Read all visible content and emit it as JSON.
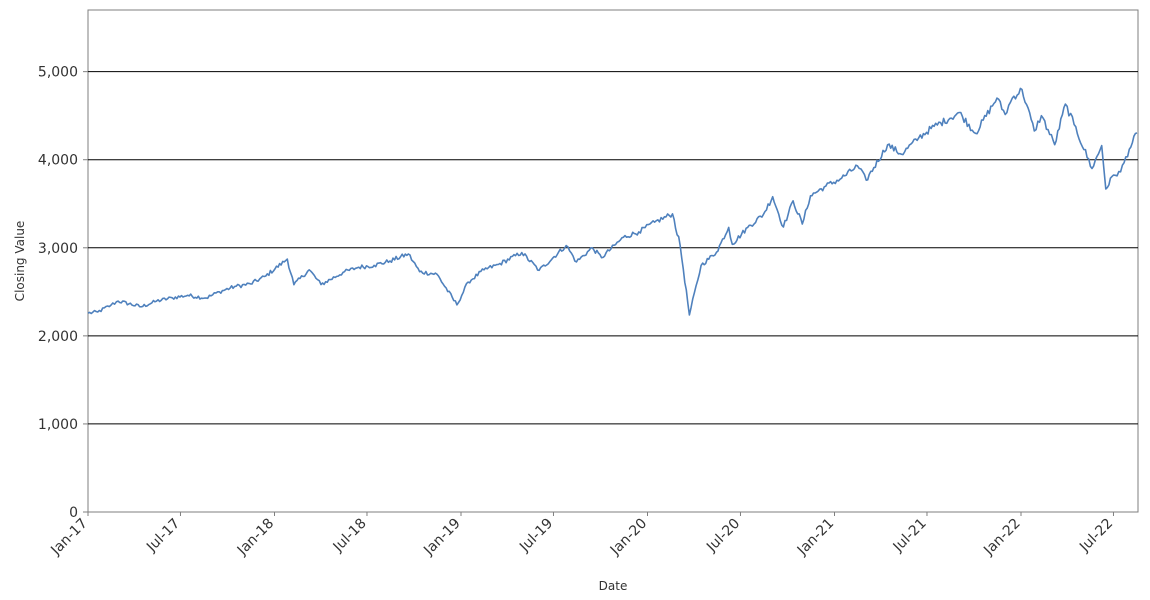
{
  "chart_data": {
    "type": "line",
    "title": "",
    "xlabel": "Date",
    "ylabel": "Closing Value",
    "ylim": [
      0,
      5700
    ],
    "xlim": [
      "2017-01-01",
      "2022-08-18"
    ],
    "grid": true,
    "y_ticks": [
      0,
      1000,
      2000,
      3000,
      4000,
      5000
    ],
    "y_tick_labels": [
      "0",
      "1,000",
      "2,000",
      "3,000",
      "4,000",
      "5,000"
    ],
    "x_ticks": [
      "2017-01-01",
      "2017-07-01",
      "2018-01-01",
      "2018-07-01",
      "2019-01-01",
      "2019-07-01",
      "2020-01-01",
      "2020-07-01",
      "2021-01-01",
      "2021-07-01",
      "2022-01-01",
      "2022-07-01"
    ],
    "x_tick_labels": [
      "Jan-17",
      "Jul-17",
      "Jan-18",
      "Jul-18",
      "Jan-19",
      "Jul-19",
      "Jan-20",
      "Jul-20",
      "Jan-21",
      "Jul-21",
      "Jan-22",
      "Jul-22"
    ],
    "line_color": "#4f81bd",
    "series": [
      {
        "x": [
          "2017-01-01",
          "2017-01-20",
          "2017-02-15",
          "2017-03-01",
          "2017-04-15",
          "2017-05-15",
          "2017-06-15",
          "2017-07-15",
          "2017-08-20",
          "2017-09-15",
          "2017-10-15",
          "2017-11-15",
          "2017-12-15",
          "2018-01-26",
          "2018-02-08",
          "2018-03-10",
          "2018-04-02",
          "2018-05-15",
          "2018-06-15",
          "2018-07-15",
          "2018-08-15",
          "2018-09-20",
          "2018-10-12",
          "2018-11-15",
          "2018-12-24",
          "2019-01-15",
          "2019-02-15",
          "2019-03-15",
          "2019-04-30",
          "2019-06-03",
          "2019-07-26",
          "2019-08-15",
          "2019-09-15",
          "2019-10-03",
          "2019-11-15",
          "2019-12-15",
          "2020-01-15",
          "2020-02-19",
          "2020-03-05",
          "2020-03-23",
          "2020-04-15",
          "2020-05-15",
          "2020-06-08",
          "2020-06-15",
          "2020-07-15",
          "2020-08-15",
          "2020-09-02",
          "2020-09-23",
          "2020-10-12",
          "2020-10-30",
          "2020-11-15",
          "2020-12-15",
          "2021-01-15",
          "2021-02-15",
          "2021-03-04",
          "2021-04-15",
          "2021-05-12",
          "2021-06-15",
          "2021-07-15",
          "2021-08-15",
          "2021-09-02",
          "2021-10-04",
          "2021-11-15",
          "2021-12-01",
          "2021-12-15",
          "2022-01-03",
          "2022-01-27",
          "2022-02-10",
          "2022-03-08",
          "2022-03-29",
          "2022-04-15",
          "2022-05-20",
          "2022-06-08",
          "2022-06-16",
          "2022-07-01",
          "2022-07-15",
          "2022-08-01",
          "2022-08-16"
        ],
        "y": [
          2258,
          2271,
          2349,
          2395,
          2330,
          2395,
          2432,
          2460,
          2430,
          2500,
          2560,
          2590,
          2680,
          2872,
          2581,
          2750,
          2582,
          2720,
          2780,
          2800,
          2850,
          2930,
          2728,
          2700,
          2351,
          2610,
          2750,
          2810,
          2945,
          2744,
          3025,
          2840,
          3000,
          2888,
          3120,
          3180,
          3290,
          3386,
          3023,
          2237,
          2800,
          2950,
          3232,
          3040,
          3230,
          3380,
          3580,
          3236,
          3534,
          3270,
          3590,
          3700,
          3790,
          3930,
          3768,
          4170,
          4063,
          4250,
          4380,
          4470,
          4536,
          4300,
          4700,
          4514,
          4700,
          4797,
          4326,
          4500,
          4170,
          4631,
          4400,
          3900,
          4160,
          3667,
          3825,
          3863,
          4120,
          4305
        ]
      }
    ]
  }
}
